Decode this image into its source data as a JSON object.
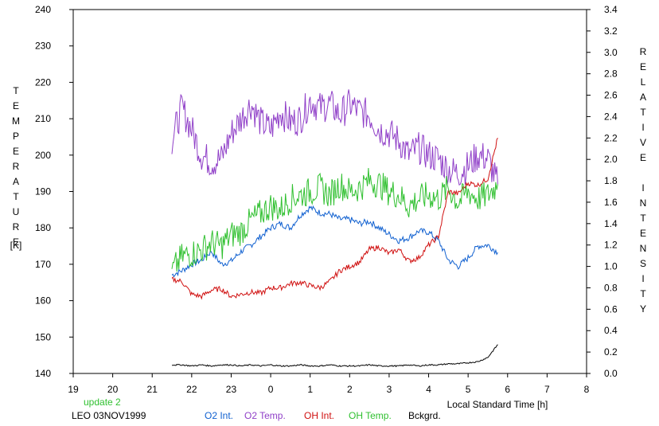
{
  "chart_data": {
    "type": "line",
    "xlabel": "Local Standard Time [h]",
    "ylabel_left": "TEMPERATURE",
    "ylabel_left_unit": "[K]",
    "ylabel_right": "RELATIVE INTENSITY",
    "x_ticks": [
      "19",
      "20",
      "21",
      "22",
      "23",
      "0",
      "1",
      "2",
      "3",
      "4",
      "5",
      "6",
      "7",
      "8"
    ],
    "xlim": [
      19,
      32
    ],
    "ylim_left": [
      140,
      240
    ],
    "y_ticks_left": [
      "140",
      "150",
      "160",
      "170",
      "180",
      "190",
      "200",
      "210",
      "220",
      "230",
      "240"
    ],
    "ylim_right": [
      0.0,
      3.4
    ],
    "y_ticks_right": [
      "0.0",
      "0.2",
      "0.4",
      "0.6",
      "0.8",
      "1.0",
      "1.2",
      "1.4",
      "1.6",
      "1.8",
      "2.0",
      "2.2",
      "2.4",
      "2.6",
      "2.8",
      "3.0",
      "3.2",
      "3.4"
    ],
    "note": "update 2",
    "station_date": "LEO 03NOV1999",
    "series": [
      {
        "name": "O2 Int.",
        "color": "#1060d0",
        "axis": "right",
        "x": [
          21.5,
          21.75,
          22.0,
          22.25,
          22.5,
          22.75,
          23.0,
          23.25,
          23.5,
          23.75,
          24.0,
          24.25,
          24.5,
          24.75,
          25.0,
          25.25,
          25.5,
          25.75,
          26.0,
          26.25,
          26.5,
          26.75,
          27.0,
          27.25,
          27.5,
          27.75,
          28.0,
          28.25,
          28.5,
          28.75,
          29.0,
          29.25,
          29.5,
          29.75
        ],
        "y": [
          0.92,
          0.96,
          1.02,
          1.06,
          1.14,
          1.02,
          1.05,
          1.14,
          1.2,
          1.28,
          1.36,
          1.4,
          1.36,
          1.48,
          1.55,
          1.5,
          1.49,
          1.44,
          1.44,
          1.4,
          1.42,
          1.36,
          1.3,
          1.24,
          1.27,
          1.33,
          1.32,
          1.24,
          1.06,
          1.0,
          1.08,
          1.19,
          1.2,
          1.13
        ]
      },
      {
        "name": "O2 Temp.",
        "color": "#9040c8",
        "axis": "left",
        "x": [
          21.5,
          21.75,
          22.0,
          22.25,
          22.5,
          22.75,
          23.0,
          23.25,
          23.5,
          23.75,
          24.0,
          24.25,
          24.5,
          24.75,
          25.0,
          25.25,
          25.5,
          25.75,
          26.0,
          26.25,
          26.5,
          26.75,
          27.0,
          27.25,
          27.5,
          27.75,
          28.0,
          28.25,
          28.5,
          28.75,
          29.0,
          29.25,
          29.5,
          29.75
        ],
        "y": [
          204,
          213,
          207,
          200,
          198,
          199,
          206,
          210,
          214,
          209,
          207,
          212,
          209,
          210,
          215,
          213,
          214,
          211,
          214,
          212,
          211,
          207,
          206,
          204,
          200,
          202,
          200,
          199,
          196,
          195,
          197,
          200,
          199,
          192
        ]
      },
      {
        "name": "OH Int.",
        "color": "#d01010",
        "axis": "right",
        "x": [
          21.5,
          21.75,
          22.0,
          22.25,
          22.5,
          22.75,
          23.0,
          23.25,
          23.5,
          23.75,
          24.0,
          24.25,
          24.5,
          24.75,
          25.0,
          25.25,
          25.5,
          25.75,
          26.0,
          26.25,
          26.5,
          26.75,
          27.0,
          27.25,
          27.5,
          27.75,
          28.0,
          28.25,
          28.5,
          28.75,
          29.0,
          29.25,
          29.5,
          29.75
        ],
        "y": [
          0.88,
          0.86,
          0.74,
          0.72,
          0.78,
          0.79,
          0.72,
          0.74,
          0.76,
          0.75,
          0.8,
          0.8,
          0.84,
          0.85,
          0.82,
          0.8,
          0.86,
          0.96,
          1.0,
          1.04,
          1.16,
          1.18,
          1.12,
          1.16,
          1.05,
          1.08,
          1.2,
          1.28,
          1.7,
          1.68,
          1.78,
          1.76,
          1.82,
          2.2
        ]
      },
      {
        "name": "OH Temp.",
        "color": "#30c030",
        "axis": "left",
        "x": [
          21.5,
          21.75,
          22.0,
          22.25,
          22.5,
          22.75,
          23.0,
          23.25,
          23.5,
          23.75,
          24.0,
          24.25,
          24.5,
          24.75,
          25.0,
          25.25,
          25.5,
          25.75,
          26.0,
          26.25,
          26.5,
          26.75,
          27.0,
          27.25,
          27.5,
          27.75,
          28.0,
          28.25,
          28.5,
          28.75,
          29.0,
          29.25,
          29.5,
          29.75
        ],
        "y": [
          168,
          172,
          173,
          174,
          176,
          175,
          178,
          179,
          182,
          184,
          186,
          185,
          188,
          189,
          190,
          191,
          189,
          192,
          190,
          191,
          193,
          192,
          190,
          189,
          186,
          188,
          189,
          188,
          191,
          187,
          190,
          188,
          189,
          192
        ]
      },
      {
        "name": "Bckgrd.",
        "color": "#000000",
        "axis": "right",
        "x": [
          21.5,
          21.75,
          22.0,
          22.25,
          22.5,
          22.75,
          23.0,
          23.25,
          23.5,
          23.75,
          24.0,
          24.25,
          24.5,
          24.75,
          25.0,
          25.25,
          25.5,
          25.75,
          26.0,
          26.25,
          26.5,
          26.75,
          27.0,
          27.25,
          27.5,
          27.75,
          28.0,
          28.25,
          28.5,
          28.75,
          29.0,
          29.25,
          29.5,
          29.75
        ],
        "y": [
          0.08,
          0.08,
          0.07,
          0.08,
          0.07,
          0.08,
          0.08,
          0.07,
          0.08,
          0.07,
          0.08,
          0.07,
          0.07,
          0.08,
          0.07,
          0.07,
          0.08,
          0.07,
          0.07,
          0.07,
          0.08,
          0.07,
          0.07,
          0.07,
          0.08,
          0.07,
          0.08,
          0.08,
          0.09,
          0.09,
          0.1,
          0.11,
          0.15,
          0.27
        ]
      }
    ]
  }
}
